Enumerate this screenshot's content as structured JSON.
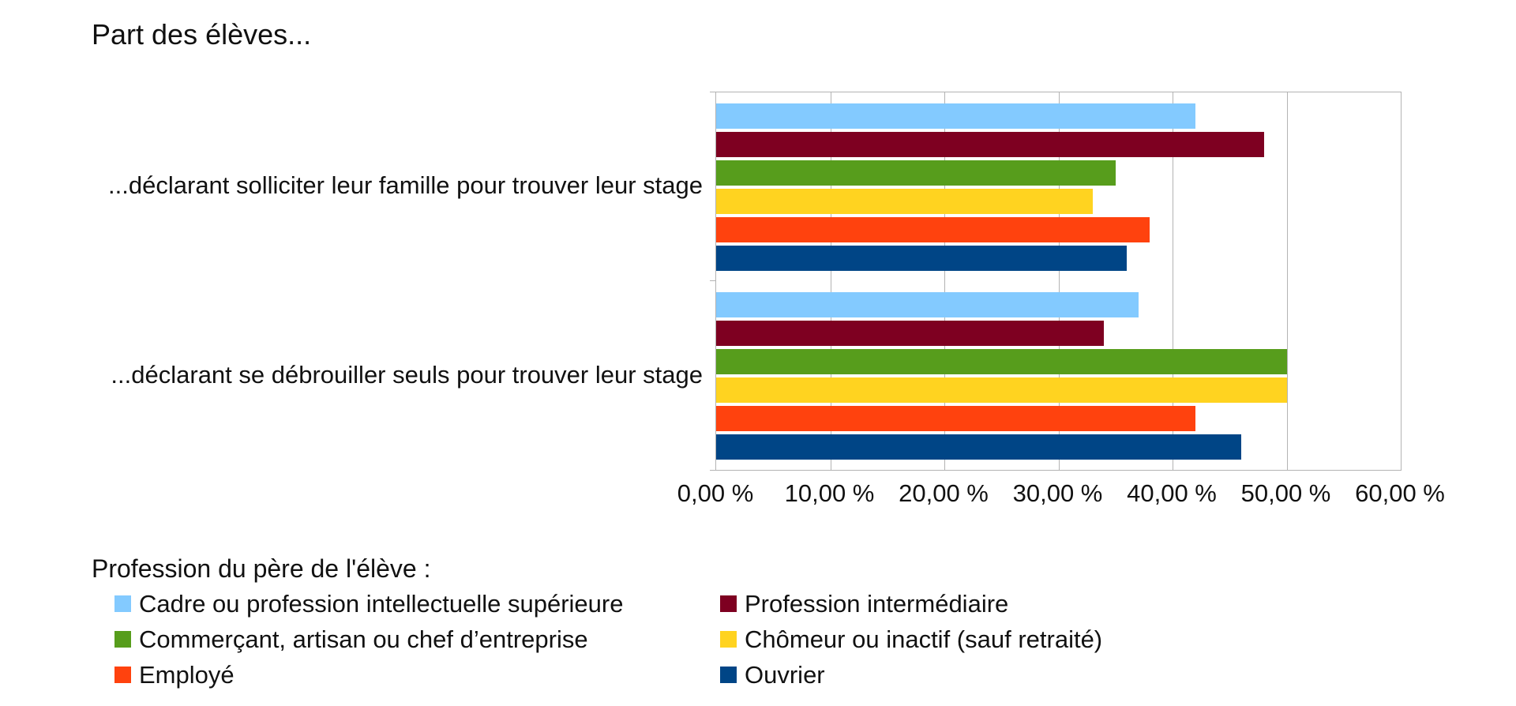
{
  "title": "Part des élèves...",
  "chart_data": {
    "type": "bar",
    "orientation": "horizontal",
    "title": "Part des élèves...",
    "categories": [
      "...déclarant solliciter leur famille pour trouver leur stage",
      "...déclarant se débrouiller seuls pour trouver leur stage"
    ],
    "series": [
      {
        "name": "Cadre ou profession intellectuelle supérieure",
        "color": "#83CAFF",
        "values": [
          42,
          37
        ]
      },
      {
        "name": "Profession intermédiaire",
        "color": "#7E0021",
        "values": [
          48,
          34
        ]
      },
      {
        "name": "Commerçant, artisan ou chef d’entreprise",
        "color": "#579D1C",
        "values": [
          35,
          50
        ]
      },
      {
        "name": "Chômeur ou inactif (sauf retraité)",
        "color": "#FFD320",
        "values": [
          33,
          50
        ]
      },
      {
        "name": "Employé",
        "color": "#FF420E",
        "values": [
          38,
          42
        ]
      },
      {
        "name": "Ouvrier",
        "color": "#004586",
        "values": [
          36,
          46
        ]
      }
    ],
    "xlim": [
      0,
      60
    ],
    "x_tick_labels": [
      "0,00 %",
      "10,00 %",
      "20,00 %",
      "30,00 %",
      "40,00 %",
      "50,00 %",
      "60,00 %"
    ],
    "grid": true,
    "gridline_color": "#b3b3b3",
    "legend_title": "Profession du père de l'élève :",
    "legend_position": "bottom"
  }
}
